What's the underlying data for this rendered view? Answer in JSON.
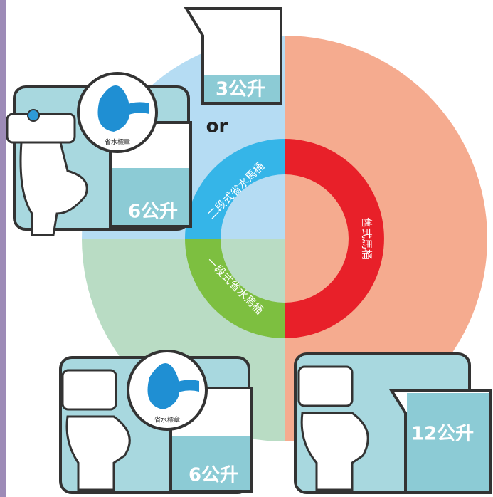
{
  "beakers": [
    {
      "label": "3公升"
    },
    {
      "label": "6公升"
    },
    {
      "label": "6公升"
    },
    {
      "label": "12公升"
    }
  ],
  "connector": "or",
  "segments": [
    {
      "label": "舊式馬桶"
    },
    {
      "label": "二段式省水馬桶"
    },
    {
      "label": "一段式省水馬桶"
    }
  ],
  "badges": [
    {
      "label": "省水標章"
    },
    {
      "label": "省水標章"
    }
  ]
}
